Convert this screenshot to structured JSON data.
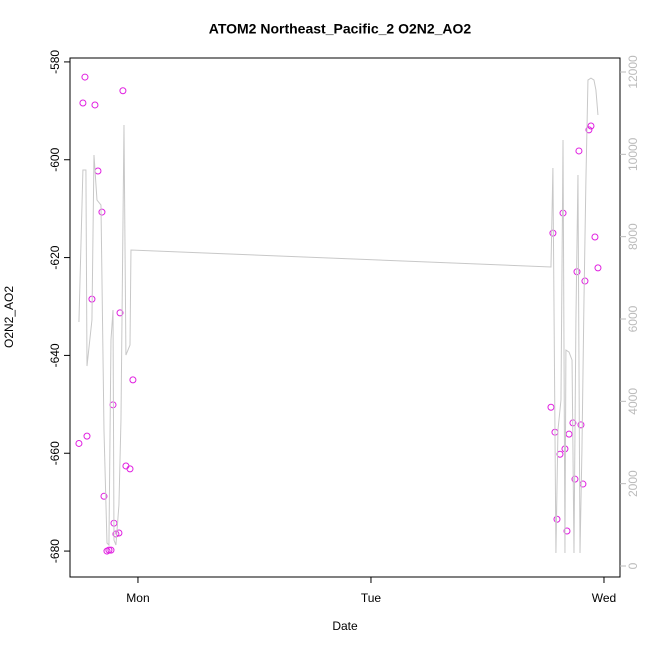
{
  "chart_data": {
    "type": "scatter",
    "title": "ATOM2 Northeast_Pacific_2 O2N2_AO2",
    "xlabel": "Date",
    "ylabel": "O2N2_AO2",
    "xlim": [
      -7.0,
      49.65
    ],
    "xticks": [
      {
        "value": 0,
        "label": "Mon"
      },
      {
        "value": 24,
        "label": "Tue"
      },
      {
        "value": 48,
        "label": "Wed"
      }
    ],
    "ylim": [
      -685.3,
      -579.2
    ],
    "yticks": [
      -680,
      -660,
      -640,
      -620,
      -600,
      -580
    ],
    "y2lim": [
      -267,
      12340
    ],
    "y2ticks": [
      0,
      2000,
      4000,
      6000,
      8000,
      10000,
      12000
    ],
    "y2color": "#bbbbbb",
    "series": [
      {
        "type": "scatter",
        "color": "#e020e0",
        "x": [
          -6.08,
          -5.67,
          -5.46,
          -5.25,
          -4.74,
          -4.43,
          -4.12,
          -3.71,
          -3.5,
          -3.19,
          -2.99,
          -2.78,
          -2.57,
          -2.47,
          -2.27,
          -1.96,
          -1.85,
          -1.55,
          -1.24,
          -0.82,
          -0.52,
          42.54,
          42.74,
          42.95,
          43.16,
          43.47,
          43.78,
          43.98,
          44.19,
          44.4,
          44.8,
          45.01,
          45.22,
          45.42,
          45.63,
          45.83,
          46.04,
          46.45,
          46.66,
          47.07,
          47.38
        ],
        "values": [
          -658,
          -588.4,
          -583.1,
          -656.5,
          -628.5,
          -588.8,
          -602.3,
          -610.7,
          -668.8,
          -680,
          -679.8,
          -679.8,
          -650.1,
          -674.3,
          -676.5,
          -676.3,
          -631.3,
          -585.9,
          -662.6,
          -663.2,
          -645,
          -650.6,
          -615,
          -655.7,
          -673.5,
          -660.2,
          -610.9,
          -659.1,
          -675.9,
          -656.1,
          -653.8,
          -665.3,
          -622.9,
          -598.2,
          -654.2,
          -666.3,
          -624.8,
          -593.9,
          -593.1,
          -615.8,
          -622.1
        ]
      },
      {
        "type": "line",
        "axis": "y2",
        "color": "#c8c8c8",
        "x": [
          -6.08,
          -5.67,
          -5.36,
          -5.25,
          -4.74,
          -4.53,
          -4.22,
          -3.81,
          -3.5,
          -3.19,
          -2.99,
          -2.78,
          -2.57,
          -2.47,
          -2.27,
          -1.96,
          -1.75,
          -1.44,
          -1.24,
          -0.82,
          -0.72,
          42.54,
          42.74,
          43.05,
          43.26,
          43.57,
          43.78,
          43.98,
          44.08,
          44.4,
          44.71,
          44.91,
          45.11,
          45.32,
          45.53,
          45.73,
          45.94,
          46.14,
          46.35,
          46.66,
          46.97,
          47.17,
          47.38
        ],
        "values": [
          5927,
          9619,
          9619,
          4858,
          5975,
          9983,
          8890,
          8769,
          3304,
          559,
          510,
          5489,
          6218,
          631,
          510,
          1482,
          3546,
          10712,
          5125,
          5368,
          7676,
          7263,
          9667,
          316,
          3304,
          4032,
          10347,
          316,
          5246,
          5198,
          5003,
          316,
          5975,
          9497,
          316,
          2818,
          6461,
          9376,
          11805,
          11853,
          11805,
          11562,
          10955
        ]
      }
    ]
  }
}
